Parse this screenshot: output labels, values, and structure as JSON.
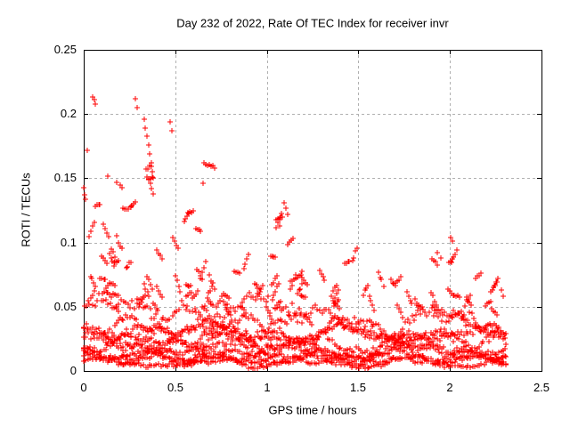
{
  "chart_data": {
    "type": "scatter",
    "title": "Day 232 of 2022, Rate Of TEC Index for receiver invr",
    "xlabel": "GPS time / hours",
    "ylabel": "ROTI / TECUs",
    "xlim": [
      0,
      2.5
    ],
    "ylim": [
      0,
      0.25
    ],
    "xticks": [
      "0",
      "0.5",
      "1",
      "1.5",
      "2",
      "2.5"
    ],
    "xtick_values": [
      0,
      0.5,
      1,
      1.5,
      2,
      2.5
    ],
    "yticks": [
      "0",
      "0.05",
      "0.1",
      "0.15",
      "0.2",
      "0.25"
    ],
    "ytick_values": [
      0,
      0.05,
      0.1,
      0.15,
      0.2,
      0.25
    ],
    "grid": true,
    "legend": "none",
    "marker": "plus",
    "marker_size_px": 7,
    "marker_color": "#ff0000",
    "grid_color": "#b0b0b0",
    "axis_color": "#000000",
    "x_data_start": 0.0,
    "x_data_end": 2.31,
    "description": "Dense band of ROTI values 0.002-0.05 across 0-2.31 h from many satellite tracks; moderate activity 0.05-0.13 mostly before 1.3 h; isolated spikes to ~0.21 near 0.05 h and 0.3 h.",
    "generator": {
      "seed": 7,
      "tracks": [
        {
          "x0": 0.0,
          "x1": 2.31,
          "step": 0.012,
          "base": 0.007,
          "amp": 0.004,
          "per": 0.55,
          "ph": 0.0,
          "jit": 0.0015
        },
        {
          "x0": 0.0,
          "x1": 2.31,
          "step": 0.012,
          "base": 0.011,
          "amp": 0.005,
          "per": 0.42,
          "ph": 1.5,
          "jit": 0.002
        },
        {
          "x0": 0.0,
          "x1": 2.31,
          "step": 0.012,
          "base": 0.016,
          "amp": 0.006,
          "per": 0.65,
          "ph": 3.0,
          "jit": 0.0025
        },
        {
          "x0": 0.0,
          "x1": 2.31,
          "step": 0.012,
          "base": 0.021,
          "amp": 0.007,
          "per": 0.5,
          "ph": 4.5,
          "jit": 0.003
        },
        {
          "x0": 0.0,
          "x1": 2.31,
          "step": 0.012,
          "base": 0.026,
          "amp": 0.008,
          "per": 0.75,
          "ph": 2.2,
          "jit": 0.003
        },
        {
          "x0": 0.0,
          "x1": 2.31,
          "step": 0.012,
          "base": 0.031,
          "amp": 0.009,
          "per": 0.6,
          "ph": 5.1,
          "jit": 0.0035
        },
        {
          "x0": 0.0,
          "x1": 2.31,
          "step": 0.012,
          "base": 0.009,
          "amp": 0.003,
          "per": 0.35,
          "ph": 0.8,
          "jit": 0.0015
        },
        {
          "x0": 0.0,
          "x1": 2.31,
          "step": 0.012,
          "base": 0.019,
          "amp": 0.01,
          "per": 0.9,
          "ph": 1.1,
          "jit": 0.004
        },
        {
          "x0": 0.1,
          "x1": 2.25,
          "step": 0.012,
          "base": 0.037,
          "amp": 0.01,
          "per": 0.7,
          "ph": 2.8,
          "jit": 0.005
        },
        {
          "x0": 0.0,
          "x1": 1.25,
          "step": 0.012,
          "base": 0.044,
          "amp": 0.012,
          "per": 0.8,
          "ph": 0.4,
          "jit": 0.006
        }
      ],
      "streaks": [
        {
          "cx": 0.06,
          "sx": 0.06,
          "ymin": 0.05,
          "ymax": 0.145,
          "chains": 6,
          "len": 4
        },
        {
          "cx": 0.12,
          "sx": 0.07,
          "ymin": 0.05,
          "ymax": 0.115,
          "chains": 7,
          "len": 4
        },
        {
          "cx": 0.22,
          "sx": 0.08,
          "ymin": 0.05,
          "ymax": 0.135,
          "chains": 6,
          "len": 4
        },
        {
          "cx": 0.32,
          "sx": 0.06,
          "ymin": 0.05,
          "ymax": 0.105,
          "chains": 5,
          "len": 4
        },
        {
          "cx": 0.35,
          "sx": 0.02,
          "ymin": 0.148,
          "ymax": 0.198,
          "chains": 3,
          "len": 4
        },
        {
          "cx": 0.47,
          "sx": 0.09,
          "ymin": 0.05,
          "ymax": 0.12,
          "chains": 6,
          "len": 4
        },
        {
          "cx": 0.57,
          "sx": 0.05,
          "ymin": 0.105,
          "ymax": 0.138,
          "chains": 3,
          "len": 4
        },
        {
          "cx": 0.62,
          "sx": 0.09,
          "ymin": 0.05,
          "ymax": 0.13,
          "chains": 6,
          "len": 4
        },
        {
          "cx": 0.78,
          "sx": 0.1,
          "ymin": 0.05,
          "ymax": 0.1,
          "chains": 7,
          "len": 4
        },
        {
          "cx": 0.95,
          "sx": 0.1,
          "ymin": 0.05,
          "ymax": 0.105,
          "chains": 7,
          "len": 4
        },
        {
          "cx": 1.08,
          "sx": 0.07,
          "ymin": 0.06,
          "ymax": 0.125,
          "chains": 5,
          "len": 4
        },
        {
          "cx": 1.22,
          "sx": 0.1,
          "ymin": 0.05,
          "ymax": 0.09,
          "chains": 6,
          "len": 4
        },
        {
          "cx": 1.42,
          "sx": 0.12,
          "ymin": 0.05,
          "ymax": 0.092,
          "chains": 7,
          "len": 4
        },
        {
          "cx": 1.65,
          "sx": 0.12,
          "ymin": 0.05,
          "ymax": 0.085,
          "chains": 6,
          "len": 4
        },
        {
          "cx": 1.85,
          "sx": 0.08,
          "ymin": 0.05,
          "ymax": 0.08,
          "chains": 5,
          "len": 4
        },
        {
          "cx": 1.96,
          "sx": 0.06,
          "ymin": 0.055,
          "ymax": 0.093,
          "chains": 4,
          "len": 4
        },
        {
          "cx": 2.08,
          "sx": 0.08,
          "ymin": 0.045,
          "ymax": 0.075,
          "chains": 5,
          "len": 4
        },
        {
          "cx": 2.24,
          "sx": 0.06,
          "ymin": 0.04,
          "ymax": 0.065,
          "chains": 4,
          "len": 4
        }
      ]
    },
    "outliers": [
      [
        0.05,
        0.213
      ],
      [
        0.057,
        0.211
      ],
      [
        0.063,
        0.208
      ],
      [
        0.02,
        0.172
      ],
      [
        0.0,
        0.143
      ],
      [
        0.006,
        0.137
      ],
      [
        0.012,
        0.134
      ],
      [
        0.28,
        0.212
      ],
      [
        0.29,
        0.205
      ],
      [
        0.33,
        0.196
      ],
      [
        0.338,
        0.189
      ],
      [
        0.346,
        0.183
      ],
      [
        0.354,
        0.176
      ],
      [
        0.362,
        0.169
      ],
      [
        0.368,
        0.162
      ],
      [
        0.374,
        0.155
      ],
      [
        0.38,
        0.15
      ],
      [
        0.18,
        0.147
      ],
      [
        0.2,
        0.145
      ],
      [
        0.21,
        0.143
      ],
      [
        0.13,
        0.152
      ],
      [
        0.47,
        0.194
      ],
      [
        0.48,
        0.187
      ],
      [
        0.26,
        0.128
      ],
      [
        0.655,
        0.162
      ],
      [
        0.665,
        0.161
      ],
      [
        0.675,
        0.16
      ],
      [
        0.685,
        0.161
      ],
      [
        0.695,
        0.159
      ],
      [
        0.705,
        0.16
      ],
      [
        0.715,
        0.158
      ],
      [
        0.65,
        0.146
      ],
      [
        1.095,
        0.131
      ],
      [
        1.105,
        0.127
      ],
      [
        1.115,
        0.122
      ],
      [
        1.05,
        0.118
      ],
      [
        1.07,
        0.113
      ],
      [
        2.005,
        0.104
      ],
      [
        2.015,
        0.101
      ],
      [
        1.93,
        0.092
      ],
      [
        1.95,
        0.088
      ],
      [
        2.28,
        0.063
      ],
      [
        2.29,
        0.058
      ]
    ]
  }
}
